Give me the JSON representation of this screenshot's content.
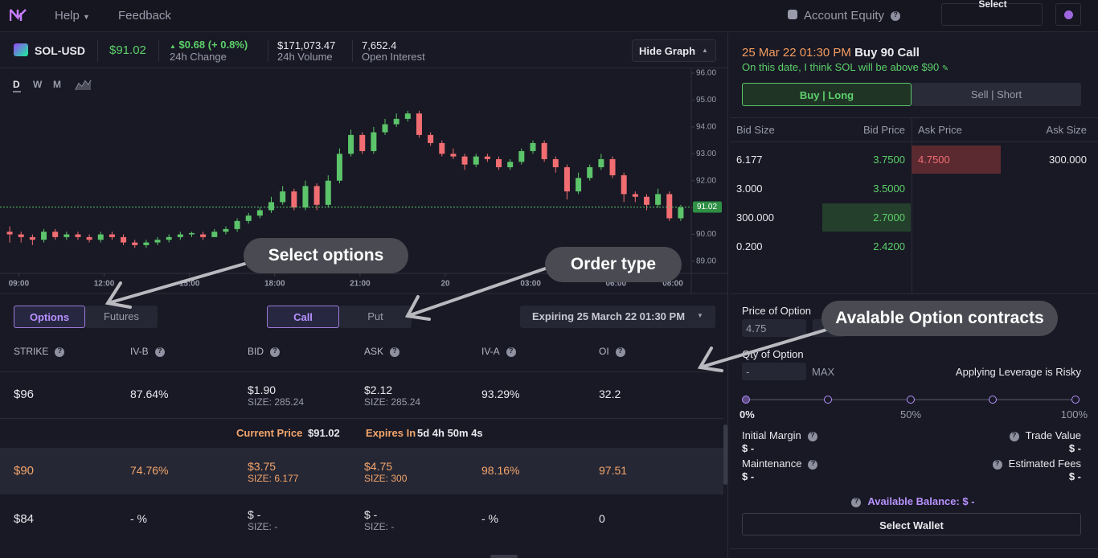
{
  "nav": {
    "items": [
      "Help",
      "Feedback"
    ],
    "account": "Account Equity",
    "wallet": "Select Wallet"
  },
  "market": {
    "pair": "SOL-USD",
    "price": "$91.02",
    "change": "$0.68 (+ 0.8%)",
    "change_label": "24h Change",
    "volume": "$171,073.47",
    "volume_label": "24h Volume",
    "oi": "7,652.4",
    "oi_label": "Open Interest",
    "hide_graph": "Hide Graph"
  },
  "chart_data": {
    "type": "candlestick",
    "timeframes": [
      "D",
      "W",
      "M"
    ],
    "up_color": "#5cc46a",
    "down_color": "#f26d72",
    "xlim": [
      0,
      60
    ],
    "xticks": [
      {
        "value": 1.3,
        "label": "09:00"
      },
      {
        "value": 8.8,
        "label": "12:00"
      },
      {
        "value": 16.3,
        "label": "15:00"
      },
      {
        "value": 23.8,
        "label": "18:00"
      },
      {
        "value": 31.3,
        "label": "21:00"
      },
      {
        "value": 38.8,
        "label": "20"
      },
      {
        "value": 46.3,
        "label": "03:00"
      },
      {
        "value": 53.8,
        "label": "06:00"
      },
      {
        "value": 58.8,
        "label": "08:00"
      }
    ],
    "ylim": [
      88.55,
      96.18
    ],
    "yticks": [
      {
        "value": 89,
        "label": "89.00"
      },
      {
        "value": 90,
        "label": "90.00"
      },
      {
        "value": 91,
        "label": "91.00"
      },
      {
        "value": 92,
        "label": "92.00"
      },
      {
        "value": 93,
        "label": "93.00"
      },
      {
        "value": 94,
        "label": "94.00"
      },
      {
        "value": 95,
        "label": "95.00"
      },
      {
        "value": 96,
        "label": "96.00"
      }
    ],
    "current_price": {
      "value": 91.02,
      "label": "91.02"
    },
    "ohlc": [
      [
        90.1,
        90.3,
        89.7,
        90.0
      ],
      [
        90.0,
        90.1,
        89.7,
        89.9
      ],
      [
        89.9,
        90.0,
        89.6,
        89.8
      ],
      [
        89.8,
        90.2,
        89.7,
        90.1
      ],
      [
        90.1,
        90.2,
        89.8,
        89.9
      ],
      [
        89.9,
        90.1,
        89.8,
        90.0
      ],
      [
        90.0,
        90.1,
        89.8,
        89.9
      ],
      [
        89.9,
        90.0,
        89.7,
        89.8
      ],
      [
        89.8,
        90.1,
        89.7,
        90.0
      ],
      [
        90.0,
        90.1,
        89.8,
        89.9
      ],
      [
        89.9,
        90.0,
        89.6,
        89.7
      ],
      [
        89.7,
        89.8,
        89.5,
        89.6
      ],
      [
        89.6,
        89.8,
        89.5,
        89.7
      ],
      [
        89.7,
        89.9,
        89.6,
        89.8
      ],
      [
        89.8,
        90.0,
        89.7,
        89.9
      ],
      [
        89.9,
        90.1,
        89.8,
        90.0
      ],
      [
        90.0,
        90.1,
        89.9,
        90.05
      ],
      [
        90.0,
        90.1,
        89.8,
        89.9
      ],
      [
        89.9,
        90.2,
        89.9,
        90.1
      ],
      [
        90.1,
        90.3,
        90.0,
        90.2
      ],
      [
        90.2,
        90.6,
        90.1,
        90.5
      ],
      [
        90.5,
        90.8,
        90.4,
        90.7
      ],
      [
        90.7,
        91.0,
        90.6,
        90.9
      ],
      [
        90.9,
        91.4,
        90.8,
        91.2
      ],
      [
        91.2,
        91.8,
        91.1,
        91.6
      ],
      [
        91.6,
        91.7,
        90.9,
        91.0
      ],
      [
        91.0,
        92.0,
        90.9,
        91.8
      ],
      [
        91.8,
        91.9,
        90.9,
        91.1
      ],
      [
        91.1,
        92.2,
        91.0,
        92.0
      ],
      [
        92.0,
        93.2,
        91.9,
        93.0
      ],
      [
        93.0,
        93.9,
        92.9,
        93.7
      ],
      [
        93.7,
        93.8,
        93.0,
        93.1
      ],
      [
        93.1,
        94.0,
        93.0,
        93.8
      ],
      [
        93.8,
        94.3,
        93.7,
        94.1
      ],
      [
        94.1,
        94.5,
        94.0,
        94.3
      ],
      [
        94.3,
        94.6,
        94.2,
        94.5
      ],
      [
        94.5,
        94.6,
        93.6,
        93.7
      ],
      [
        93.7,
        93.8,
        93.3,
        93.4
      ],
      [
        93.4,
        93.5,
        92.9,
        93.0
      ],
      [
        93.0,
        93.2,
        92.8,
        92.9
      ],
      [
        92.9,
        93.0,
        92.4,
        92.6
      ],
      [
        92.6,
        93.0,
        92.5,
        92.9
      ],
      [
        92.9,
        93.0,
        92.7,
        92.8
      ],
      [
        92.8,
        92.9,
        92.4,
        92.5
      ],
      [
        92.5,
        92.8,
        92.4,
        92.7
      ],
      [
        92.7,
        93.2,
        92.6,
        93.1
      ],
      [
        93.1,
        93.5,
        93.0,
        93.4
      ],
      [
        93.4,
        93.5,
        92.7,
        92.8
      ],
      [
        92.8,
        92.9,
        92.3,
        92.5
      ],
      [
        92.5,
        92.6,
        91.3,
        91.6
      ],
      [
        91.6,
        92.3,
        91.5,
        92.1
      ],
      [
        92.1,
        92.6,
        92.0,
        92.5
      ],
      [
        92.5,
        93.0,
        92.4,
        92.8
      ],
      [
        92.8,
        92.9,
        92.1,
        92.2
      ],
      [
        92.2,
        92.3,
        91.2,
        91.5
      ],
      [
        91.5,
        91.6,
        91.2,
        91.4
      ],
      [
        91.4,
        91.5,
        90.9,
        91.1
      ],
      [
        91.1,
        91.7,
        91.0,
        91.5
      ],
      [
        91.5,
        91.6,
        90.5,
        90.6
      ],
      [
        90.6,
        91.1,
        90.5,
        91.0
      ]
    ]
  },
  "tabs": {
    "kind": [
      "Options",
      "Futures"
    ],
    "side": [
      "Call",
      "Put"
    ],
    "expiry": "Expiring 25 March 22 01:30 PM"
  },
  "table": {
    "headers": [
      "STRIKE",
      "IV-B",
      "BID",
      "ASK",
      "IV-A",
      "OI"
    ],
    "rows": [
      [
        "$96",
        "87.64%",
        "$1.90",
        "SIZE: 285.24",
        "$2.12",
        "SIZE: 285.24",
        "93.29%",
        "32.2"
      ],
      [
        "$90",
        "74.76%",
        "$3.75",
        "SIZE: 6.177",
        "$4.75",
        "SIZE: 300",
        "98.16%",
        "97.51"
      ],
      [
        "$84",
        "- %",
        "$ -",
        "SIZE: -",
        "$ -",
        "SIZE: -",
        "- %",
        "0"
      ]
    ],
    "strip": {
      "current_label": "Current Price",
      "current": "$91.02",
      "expires_label": "Expires In",
      "expires": "5d 4h 50m 4s"
    }
  },
  "order": {
    "date": "25 Mar 22 01:30 PM",
    "title": "Buy 90 Call",
    "note": "On this date, I think SOL will be above $90",
    "buttons": [
      "Buy | Long",
      "Sell | Short"
    ]
  },
  "book": {
    "headers": [
      "Bid Size",
      "Bid Price",
      "Ask Price",
      "Ask Size"
    ],
    "bids": [
      [
        "6.177",
        "3.7500"
      ],
      [
        "3.000",
        "3.5000"
      ],
      [
        "300.000",
        "2.7000"
      ],
      [
        "0.200",
        "2.4200"
      ]
    ],
    "asks": [
      [
        "4.7500",
        "300.000"
      ]
    ]
  },
  "form": {
    "price_label": "Price of Option",
    "price": "4.75",
    "qty_label": "Qty of Option",
    "qty": "-",
    "max": "MAX",
    "risk": "Applying Leverage is Risky",
    "slider": [
      "0%",
      "50%",
      "100%"
    ],
    "initial_margin": "Initial Margin",
    "initial_margin_value": "$ -",
    "trade_value": "Trade Value",
    "trade_value_value": "$ -",
    "maintenance": "Maintenance",
    "maintenance_value": "$ -",
    "fees": "Estimated Fees",
    "fees_value": "$ -",
    "balance": "Available Balance: $ -",
    "select_wallet": "Select Wallet"
  },
  "annotations": [
    "Select options",
    "Order type",
    "Avalable Option contracts"
  ]
}
